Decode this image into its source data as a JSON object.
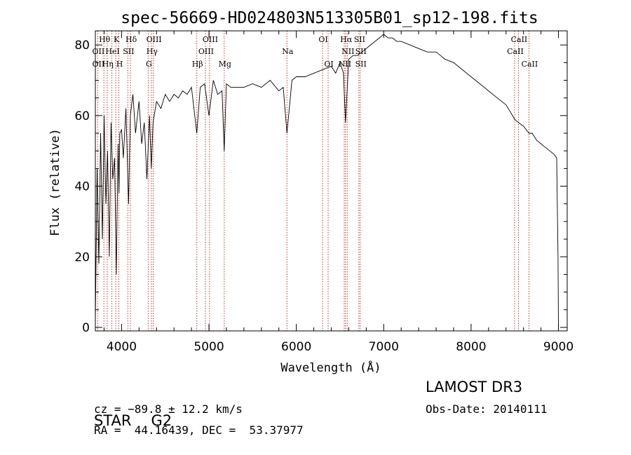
{
  "chart_data": {
    "type": "line",
    "title": "spec-56669-HD024803N513305B01_sp12-198.fits",
    "xlabel": "Wavelength (Å)",
    "ylabel": "Flux (relative)",
    "xlim": [
      3700,
      9100
    ],
    "ylim": [
      -1,
      84
    ],
    "x_ticks": [
      4000,
      5000,
      6000,
      7000,
      8000,
      9000
    ],
    "y_ticks": [
      0,
      20,
      40,
      60,
      80
    ],
    "series": [
      {
        "name": "spectrum",
        "x": [
          3700,
          3720,
          3740,
          3760,
          3780,
          3800,
          3820,
          3840,
          3860,
          3880,
          3900,
          3920,
          3940,
          3960,
          3970,
          3980,
          4000,
          4020,
          4050,
          4080,
          4100,
          4130,
          4160,
          4200,
          4230,
          4260,
          4290,
          4320,
          4340,
          4360,
          4400,
          4450,
          4500,
          4550,
          4600,
          4650,
          4700,
          4750,
          4800,
          4861,
          4900,
          4950,
          5000,
          5050,
          5100,
          5150,
          5175,
          5200,
          5250,
          5300,
          5400,
          5500,
          5600,
          5700,
          5800,
          5850,
          5893,
          5950,
          6000,
          6100,
          6200,
          6300,
          6400,
          6450,
          6500,
          6540,
          6563,
          6600,
          6650,
          6700,
          6750,
          6800,
          6850,
          6900,
          6950,
          7000,
          7050,
          7100,
          7150,
          7200,
          7300,
          7400,
          7500,
          7600,
          7650,
          7700,
          7800,
          7900,
          8000,
          8100,
          8200,
          8300,
          8400,
          8450,
          8498,
          8542,
          8600,
          8662,
          8700,
          8750,
          8800,
          8850,
          8900,
          8950,
          8980,
          8995,
          9000
        ],
        "y": [
          2,
          45,
          18,
          55,
          25,
          60,
          35,
          50,
          20,
          58,
          42,
          48,
          15,
          52,
          38,
          55,
          56,
          48,
          62,
          35,
          60,
          66,
          55,
          64,
          52,
          58,
          42,
          60,
          45,
          58,
          64,
          62,
          66,
          64,
          66,
          65,
          67,
          66,
          68,
          55,
          68,
          69,
          60,
          70,
          66,
          67,
          50,
          69,
          68,
          68,
          68,
          69,
          68,
          70,
          67,
          68,
          55,
          70,
          71,
          71,
          72,
          73,
          74,
          72,
          75,
          72,
          58,
          76,
          77,
          77,
          78,
          79,
          80,
          81,
          82,
          83,
          82,
          82,
          81,
          81,
          80,
          79,
          78,
          78,
          77,
          76,
          75,
          73,
          71,
          69,
          67,
          65,
          63,
          61,
          59,
          58,
          57,
          55,
          55,
          53,
          52,
          51,
          50,
          49,
          48,
          20,
          0
        ]
      }
    ],
    "lines": [
      {
        "name": "OII",
        "x": 3727
      },
      {
        "name": "Hθ",
        "x": 3798
      },
      {
        "name": "Hη",
        "x": 3835
      },
      {
        "name": "HeI",
        "x": 3889
      },
      {
        "name": "K",
        "x": 3934
      },
      {
        "name": "H",
        "x": 3969
      },
      {
        "name": "SII",
        "x": 4072
      },
      {
        "name": "Hδ",
        "x": 4102
      },
      {
        "name": "G",
        "x": 4305
      },
      {
        "name": "Hγ",
        "x": 4341
      },
      {
        "name": "OIII",
        "x": 4363
      },
      {
        "name": "Hβ",
        "x": 4861
      },
      {
        "name": "OIII",
        "x": 4959
      },
      {
        "name": "OIII",
        "x": 5007
      },
      {
        "name": "Mg",
        "x": 5175
      },
      {
        "name": "Na",
        "x": 5893
      },
      {
        "name": "OI",
        "x": 6300
      },
      {
        "name": "OI",
        "x": 6364
      },
      {
        "name": "NII",
        "x": 6548
      },
      {
        "name": "Hα",
        "x": 6563
      },
      {
        "name": "NII",
        "x": 6583
      },
      {
        "name": "SII",
        "x": 6716
      },
      {
        "name": "SII",
        "x": 6731
      },
      {
        "name": "CaII",
        "x": 8498
      },
      {
        "name": "CaII",
        "x": 8542
      },
      {
        "name": "CaII",
        "x": 8662
      }
    ],
    "line_labels": [
      {
        "text": "Hθ",
        "x": 3798,
        "row": 0
      },
      {
        "text": "K",
        "x": 3934,
        "row": 0
      },
      {
        "text": "Hδ",
        "x": 4102,
        "row": 0
      },
      {
        "text": "OIII",
        "x": 4363,
        "row": 0
      },
      {
        "text": "OIII",
        "x": 5007,
        "row": 0
      },
      {
        "text": "OI",
        "x": 6300,
        "row": 0
      },
      {
        "text": "Hα",
        "x": 6563,
        "row": 0
      },
      {
        "text": "SII",
        "x": 6716,
        "row": 0
      },
      {
        "text": "CaII",
        "x": 8542,
        "row": 0
      },
      {
        "text": "OII",
        "x": 3727,
        "row": 1
      },
      {
        "text": "HeI",
        "x": 3889,
        "row": 1
      },
      {
        "text": "SII",
        "x": 4072,
        "row": 1
      },
      {
        "text": "Hγ",
        "x": 4341,
        "row": 1
      },
      {
        "text": "OIII",
        "x": 4959,
        "row": 1
      },
      {
        "text": "Na",
        "x": 5893,
        "row": 1
      },
      {
        "text": "NII",
        "x": 6583,
        "row": 1
      },
      {
        "text": "SII",
        "x": 6731,
        "row": 1
      },
      {
        "text": "CaII",
        "x": 8498,
        "row": 1
      },
      {
        "text": "OII",
        "x": 3727,
        "row": 2
      },
      {
        "text": "Hη",
        "x": 3835,
        "row": 2
      },
      {
        "text": "H",
        "x": 3969,
        "row": 2
      },
      {
        "text": "G",
        "x": 4305,
        "row": 2
      },
      {
        "text": "Hβ",
        "x": 4861,
        "row": 2
      },
      {
        "text": "Mg",
        "x": 5175,
        "row": 2
      },
      {
        "text": "OI",
        "x": 6364,
        "row": 2
      },
      {
        "text": "NII",
        "x": 6548,
        "row": 2
      },
      {
        "text": "SII",
        "x": 6731,
        "row": 2
      },
      {
        "text": "CaII",
        "x": 8662,
        "row": 2
      }
    ]
  },
  "info": {
    "object_class": "STAR",
    "subclass": "G2",
    "survey": "LAMOST DR3",
    "cz": "cz = −89.8 ± 12.2 km/s",
    "obs_date": "Obs-Date: 20140111",
    "coords": "RA =  44.16439, DEC =  53.37977"
  }
}
